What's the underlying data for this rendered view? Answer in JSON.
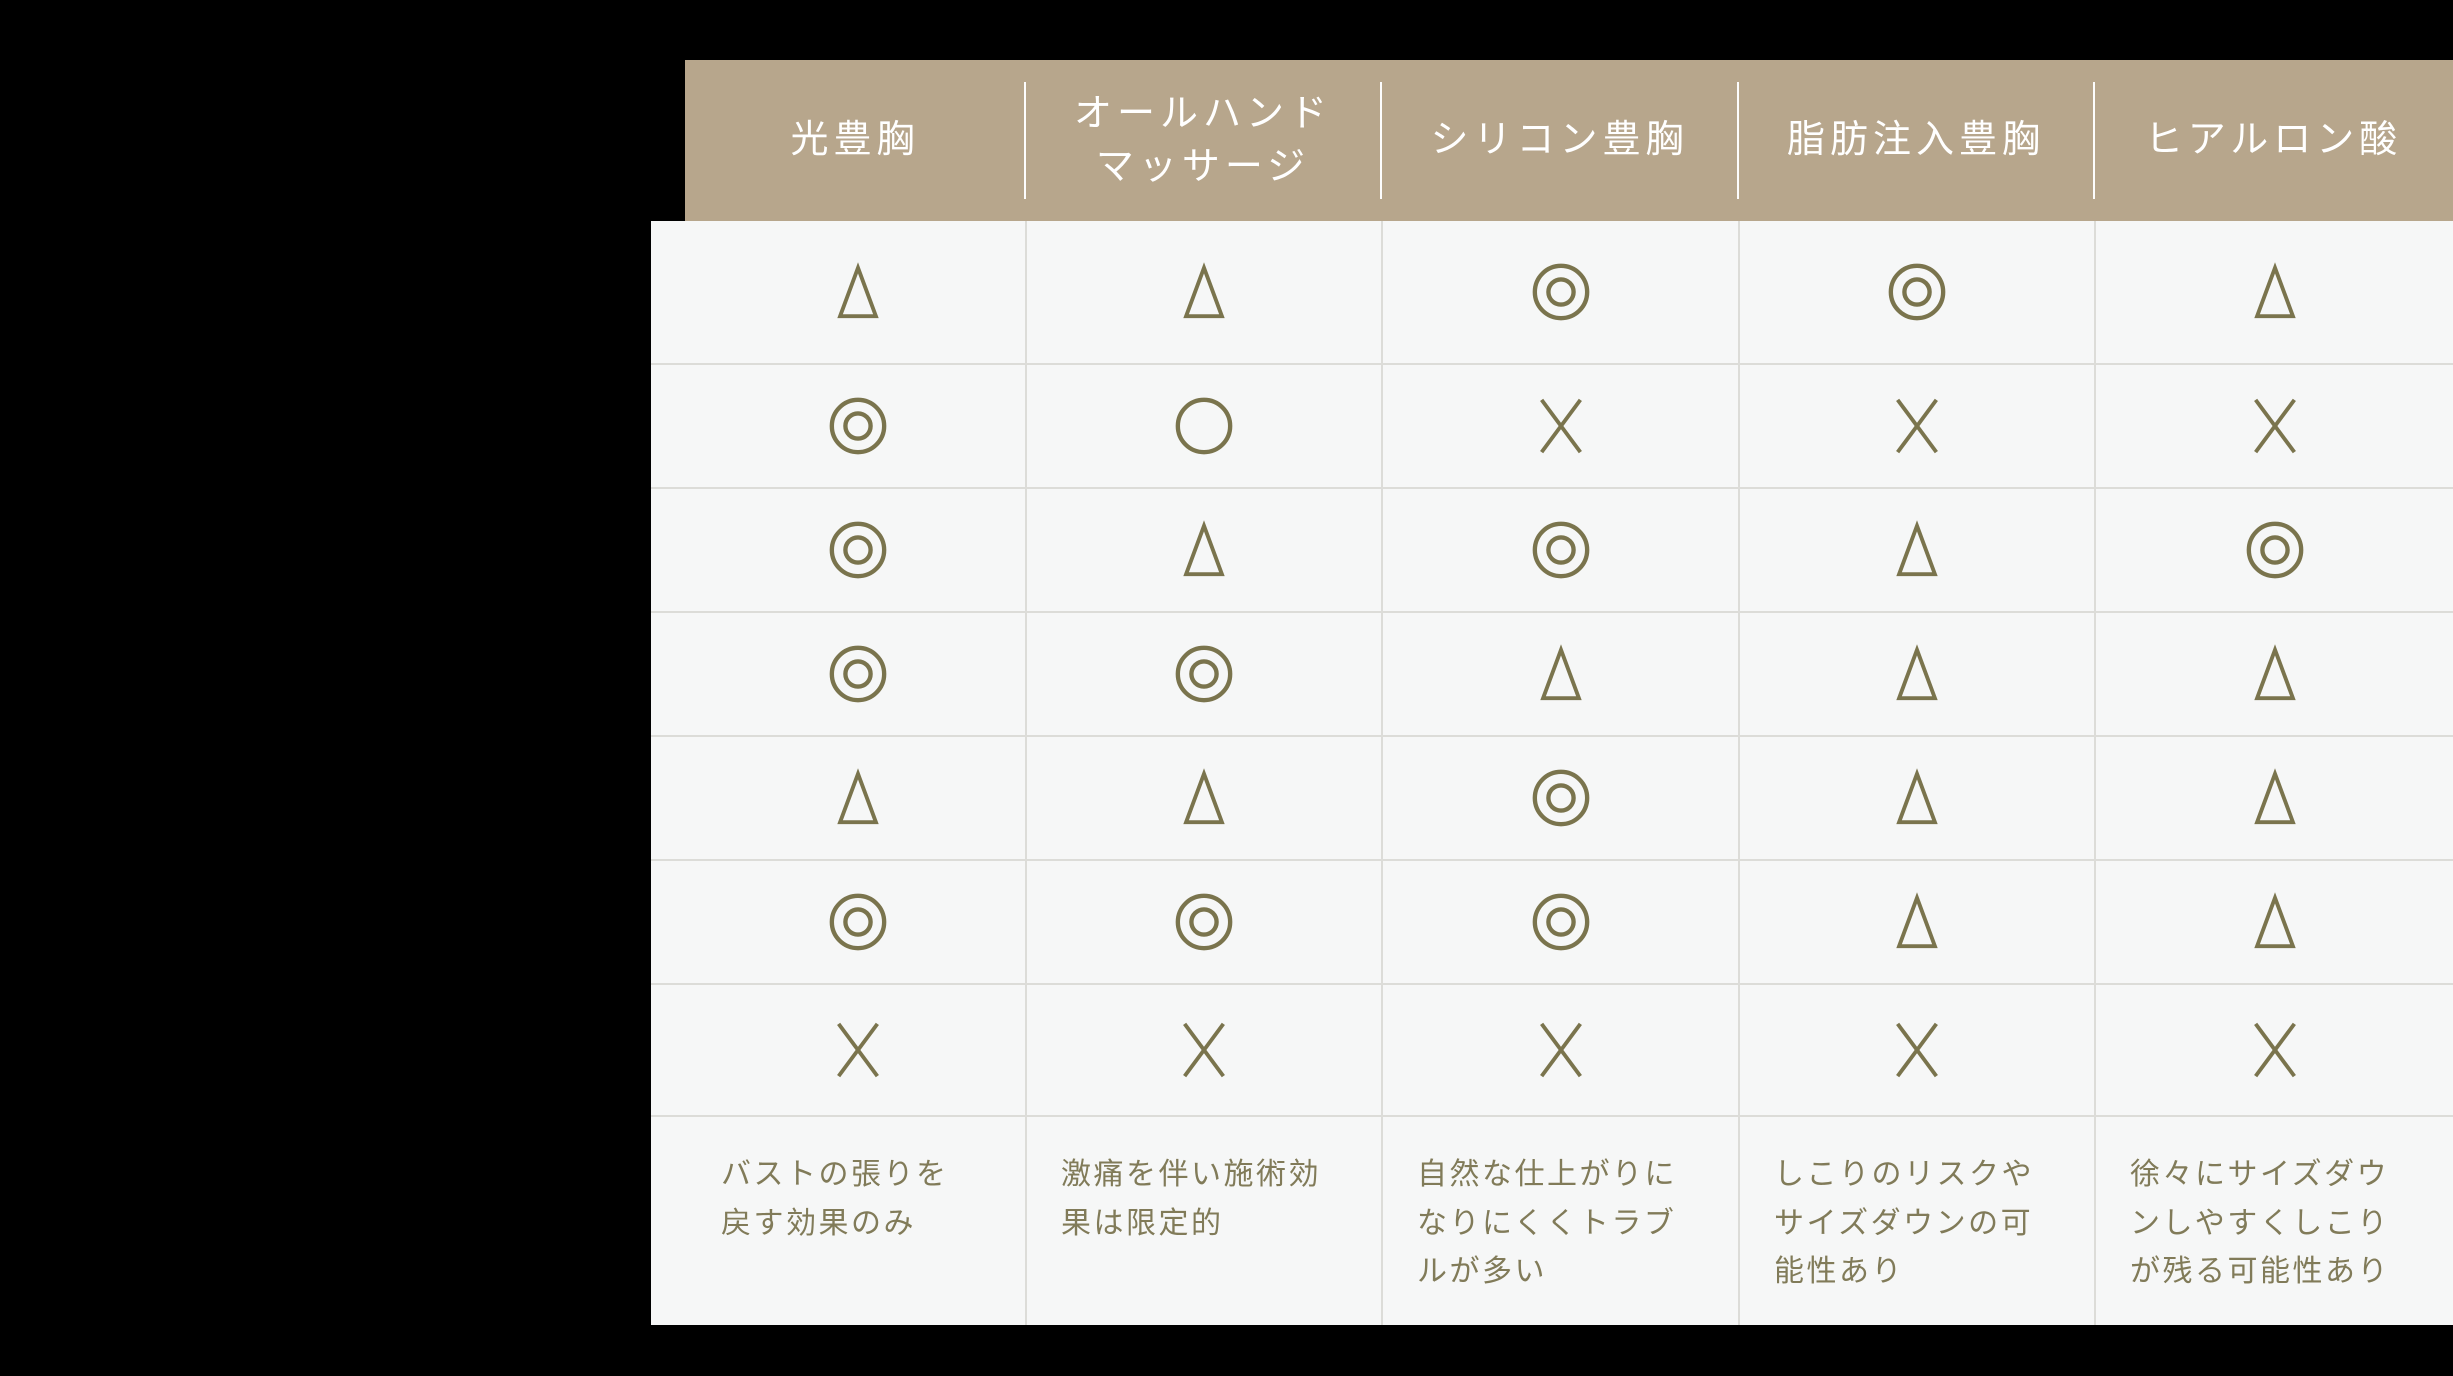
{
  "table": {
    "columns": [
      {
        "label": "光豊胸"
      },
      {
        "label": "オールハンド\nマッサージ"
      },
      {
        "label": "シリコン豊胸"
      },
      {
        "label": "脂肪注入豊胸"
      },
      {
        "label": "ヒアルロン酸"
      }
    ],
    "rows": [
      {
        "cells": [
          "triangle",
          "triangle",
          "double-circle",
          "double-circle",
          "triangle"
        ]
      },
      {
        "cells": [
          "double-circle",
          "circle",
          "cross",
          "cross",
          "cross"
        ]
      },
      {
        "cells": [
          "double-circle",
          "triangle",
          "double-circle",
          "triangle",
          "double-circle"
        ]
      },
      {
        "cells": [
          "double-circle",
          "double-circle",
          "triangle",
          "triangle",
          "triangle"
        ]
      },
      {
        "cells": [
          "triangle",
          "triangle",
          "double-circle",
          "triangle",
          "triangle"
        ]
      },
      {
        "cells": [
          "double-circle",
          "double-circle",
          "double-circle",
          "triangle",
          "triangle"
        ]
      },
      {
        "cells": [
          "cross",
          "cross",
          "cross",
          "cross",
          "cross"
        ]
      }
    ],
    "notes": [
      "バストの張りを戻す効果のみ",
      "激痛を伴い施術効果は限定的",
      "自然な仕上がりになりにくくトラブルが多い",
      "しこりのリスクやサイズダウンの可能性あり",
      "徐々にサイズダウンしやすくしこりが残る可能性あり"
    ],
    "symbol_glyphs": {
      "double-circle": "◎",
      "circle": "○",
      "triangle": "△",
      "cross": "×"
    },
    "colors": {
      "page_bg": "#000000",
      "header_bg": "#b7a68c",
      "header_text": "#ffffff",
      "body_bg": "#f6f7f7",
      "grid_line": "#dcdcd8",
      "symbol": "#7a744d",
      "note_text": "#817b59"
    }
  }
}
